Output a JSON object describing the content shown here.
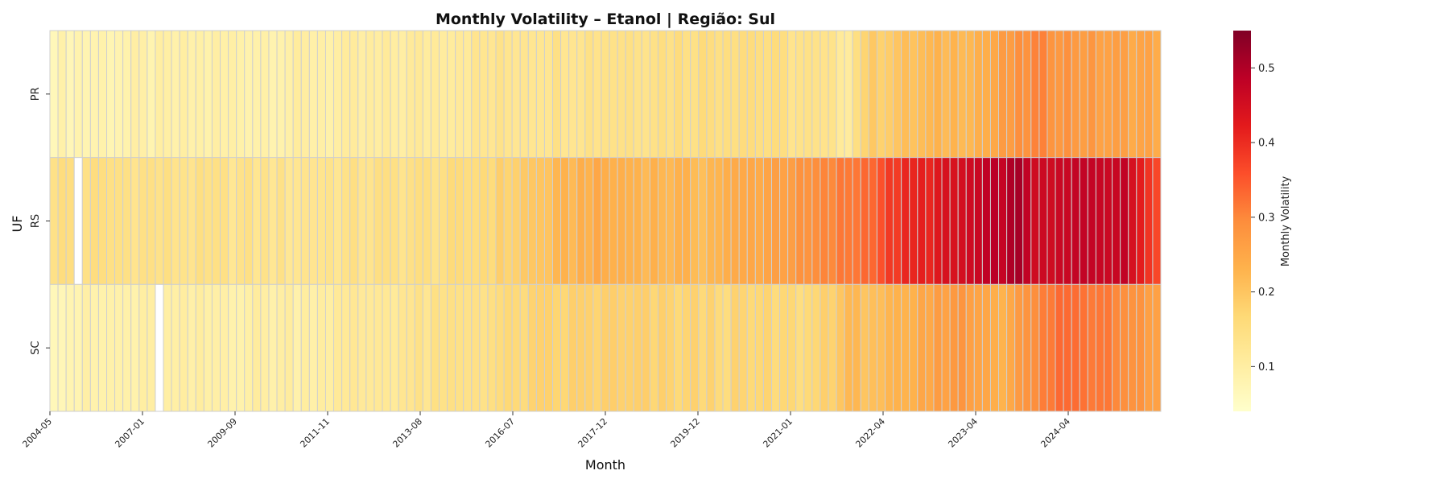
{
  "chart_data": {
    "type": "heatmap",
    "title": "Monthly Volatility – Etanol | Região: Sul",
    "xlabel": "Month",
    "ylabel": "UF",
    "rows": [
      "PR",
      "RS",
      "SC"
    ],
    "x_tick_labels": [
      "2004-05",
      "2007-01",
      "2009-09",
      "2011-11",
      "2013-08",
      "2016-07",
      "2017-12",
      "2019-12",
      "2021-01",
      "2022-04",
      "2023-04",
      "2024-04"
    ],
    "n_columns": 137,
    "colorbar": {
      "label": "Monthly Volatility",
      "range": [
        0.04,
        0.55
      ],
      "ticks": [
        "0.1",
        "0.2",
        "0.3",
        "0.4",
        "0.5"
      ],
      "colormap": "YlOrRd"
    },
    "cell_border_color": "#cfcfcf",
    "missing_cells": {
      "RS": [
        3
      ],
      "SC": [
        13
      ]
    },
    "approx_row_profiles": {
      "PR": [
        [
          0,
          0.08
        ],
        [
          15,
          0.09
        ],
        [
          40,
          0.1
        ],
        [
          55,
          0.13
        ],
        [
          85,
          0.16
        ],
        [
          98,
          0.12
        ],
        [
          100,
          0.18
        ],
        [
          104,
          0.2
        ],
        [
          109,
          0.22
        ],
        [
          115,
          0.24
        ],
        [
          121,
          0.3
        ],
        [
          130,
          0.26
        ],
        [
          136,
          0.25
        ]
      ],
      "RS": [
        [
          0,
          0.15
        ],
        [
          14,
          0.14
        ],
        [
          30,
          0.13
        ],
        [
          50,
          0.15
        ],
        [
          60,
          0.2
        ],
        [
          66,
          0.24
        ],
        [
          80,
          0.22
        ],
        [
          93,
          0.28
        ],
        [
          100,
          0.33
        ],
        [
          104,
          0.39
        ],
        [
          111,
          0.44
        ],
        [
          119,
          0.5
        ],
        [
          122,
          0.45
        ],
        [
          128,
          0.48
        ],
        [
          132,
          0.47
        ],
        [
          136,
          0.38
        ]
      ],
      "SC": [
        [
          0,
          0.08
        ],
        [
          10,
          0.09
        ],
        [
          30,
          0.1
        ],
        [
          50,
          0.14
        ],
        [
          60,
          0.17
        ],
        [
          66,
          0.18
        ],
        [
          80,
          0.17
        ],
        [
          93,
          0.16
        ],
        [
          98,
          0.21
        ],
        [
          105,
          0.22
        ],
        [
          111,
          0.28
        ],
        [
          117,
          0.24
        ],
        [
          124,
          0.33
        ],
        [
          130,
          0.32
        ],
        [
          136,
          0.26
        ]
      ]
    }
  }
}
